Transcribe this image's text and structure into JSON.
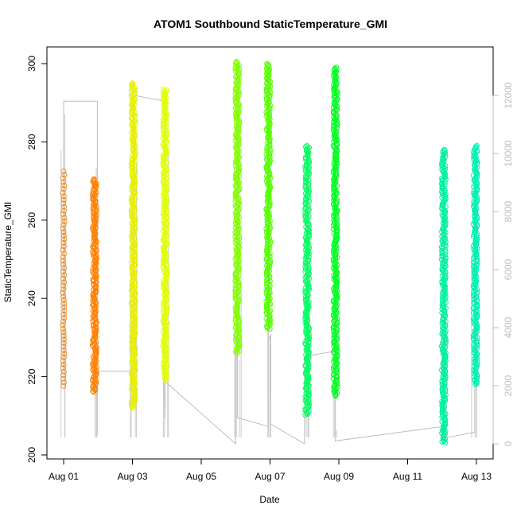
{
  "chart_data": {
    "type": "scatter",
    "title": "ATOM1 Southbound StaticTemperature_GMI",
    "xlabel": "Date",
    "ylabel": "StaticTemperature_GMI",
    "x_unit": "days in August",
    "xlim": [
      1,
      13.2
    ],
    "ylim": [
      200,
      302
    ],
    "y2lim": [
      -200,
      12800
    ],
    "x_ticks": [
      {
        "value": 1,
        "label": "Aug 01"
      },
      {
        "value": 3,
        "label": "Aug 03"
      },
      {
        "value": 5,
        "label": "Aug 05"
      },
      {
        "value": 7,
        "label": "Aug 07"
      },
      {
        "value": 9,
        "label": "Aug 09"
      },
      {
        "value": 11,
        "label": "Aug 11"
      },
      {
        "value": 13,
        "label": "Aug 13"
      }
    ],
    "y_ticks": [
      200,
      220,
      240,
      260,
      280,
      300
    ],
    "y2_ticks": [
      0,
      2000,
      4000,
      6000,
      8000,
      10000,
      12000
    ],
    "series": [
      {
        "x": 1.0,
        "ymin": 217,
        "ymax": 272.5,
        "color": "#f28c1e",
        "dense": false
      },
      {
        "x": 1.9,
        "ymin": 216,
        "ymax": 270.5,
        "color": "#ff8000",
        "dense": true
      },
      {
        "x": 3.03,
        "ymin": 212,
        "ymax": 295,
        "color": "#e6f000",
        "dense": true
      },
      {
        "x": 3.95,
        "ymin": 219,
        "ymax": 293.5,
        "color": "#e0ff00",
        "dense": true
      },
      {
        "x": 6.05,
        "ymin": 226,
        "ymax": 300.5,
        "color": "#80ff00",
        "dense": true
      },
      {
        "x": 6.95,
        "ymin": 232,
        "ymax": 300,
        "color": "#55ff00",
        "dense": true
      },
      {
        "x": 8.08,
        "ymin": 210,
        "ymax": 279,
        "color": "#00ff60",
        "dense": true
      },
      {
        "x": 8.9,
        "ymin": 215,
        "ymax": 299,
        "color": "#00ff20",
        "dense": true
      },
      {
        "x": 12.05,
        "ymin": 203,
        "ymax": 278,
        "color": "#00f0a0",
        "dense": true
      },
      {
        "x": 12.97,
        "ymin": 218,
        "ymax": 279,
        "color": "#00f0b4",
        "dense": true
      }
    ],
    "altitude_trace": [
      [
        1.0,
        2500
      ],
      [
        1.0,
        11800
      ],
      [
        1.98,
        11800
      ],
      [
        1.98,
        300
      ],
      [
        1.98,
        2500
      ],
      [
        3.05,
        2500
      ],
      [
        3.05,
        1500
      ],
      [
        3.05,
        12000
      ],
      [
        3.95,
        11800
      ],
      [
        3.95,
        900
      ],
      [
        3.9,
        2200
      ],
      [
        6.0,
        0
      ],
      [
        6.0,
        3000
      ],
      [
        6.05,
        3500
      ],
      [
        6.05,
        900
      ],
      [
        6.95,
        600
      ],
      [
        6.95,
        3600
      ],
      [
        7.0,
        3700
      ],
      [
        7.0,
        700
      ],
      [
        8.0,
        0
      ],
      [
        8.0,
        3000
      ],
      [
        8.9,
        3200
      ],
      [
        8.9,
        100
      ],
      [
        12.05,
        600
      ],
      [
        12.05,
        200
      ],
      [
        12.95,
        400
      ],
      [
        12.95,
        9700
      ],
      [
        13.0,
        9700
      ],
      [
        13.0,
        800
      ]
    ]
  }
}
